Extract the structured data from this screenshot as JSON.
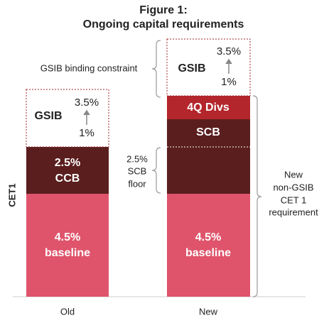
{
  "title": {
    "line1": "Figure 1:",
    "line2": "Ongoing capital requirements"
  },
  "y_axis_label": "CET1",
  "bars": [
    {
      "label": "Old",
      "baseline": [
        "4.5%",
        "baseline"
      ],
      "middle": [
        "2.5%",
        "CCB"
      ],
      "gsib": {
        "name": "GSIB",
        "high": "3.5%",
        "low": "1%"
      }
    },
    {
      "label": "New",
      "baseline": [
        "4.5%",
        "baseline"
      ],
      "middle": [
        "SCB"
      ],
      "top": "4Q Divs",
      "gsib": {
        "name": "GSIB",
        "high": "3.5%",
        "low": "1%"
      }
    }
  ],
  "annotations": {
    "gsib_constraint": "GSIB binding constraint",
    "scb_floor": [
      "2.5%",
      "SCB",
      "floor"
    ],
    "requirement": [
      "New",
      "non-GSIB",
      "CET 1",
      "requirement"
    ]
  }
}
